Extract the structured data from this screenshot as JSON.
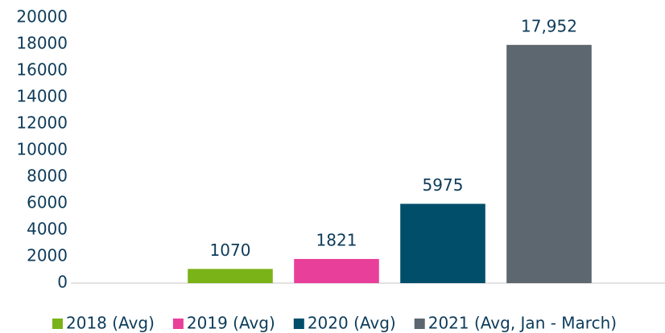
{
  "chart_data": {
    "type": "bar",
    "series": [
      {
        "name": "2018 (Avg)",
        "color": "#7ab317",
        "values": [
          1070
        ]
      },
      {
        "name": "2019 (Avg)",
        "color": "#e8409a",
        "values": [
          1821
        ]
      },
      {
        "name": "2020 (Avg)",
        "color": "#004e6a",
        "values": [
          5975
        ]
      },
      {
        "name": "2021 (Avg, Jan - March)",
        "color": "#5c6770",
        "values": [
          17952
        ],
        "value_labels": [
          "17,952"
        ]
      }
    ],
    "ylim": [
      0,
      20000
    ],
    "yticks": [
      0,
      2000,
      4000,
      6000,
      8000,
      10000,
      12000,
      14000,
      16000,
      18000,
      20000
    ],
    "legend": "bottom"
  }
}
